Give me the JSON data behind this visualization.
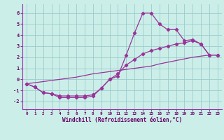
{
  "xlabel": "Windchill (Refroidissement éolien,°C)",
  "bg_color": "#cceee8",
  "grid_color": "#99cccc",
  "line_color": "#993399",
  "spine_color": "#9933aa",
  "xlim": [
    -0.5,
    23.5
  ],
  "ylim": [
    -2.7,
    6.8
  ],
  "yticks": [
    -2,
    -1,
    0,
    1,
    2,
    3,
    4,
    5,
    6
  ],
  "xticks": [
    0,
    1,
    2,
    3,
    4,
    5,
    6,
    7,
    8,
    9,
    10,
    11,
    12,
    13,
    14,
    15,
    16,
    17,
    18,
    19,
    20,
    21,
    22,
    23
  ],
  "line1_x": [
    0,
    1,
    2,
    3,
    4,
    5,
    6,
    7,
    8,
    9,
    10,
    11,
    12,
    13,
    14,
    15,
    16,
    17,
    18,
    19,
    20,
    21,
    22,
    23
  ],
  "line1_y": [
    -0.4,
    -0.7,
    -1.2,
    -1.3,
    -1.65,
    -1.65,
    -1.65,
    -1.65,
    -1.5,
    -0.8,
    0.0,
    0.3,
    2.2,
    4.2,
    6.0,
    6.0,
    5.0,
    4.5,
    4.5,
    3.5,
    3.6,
    3.2,
    2.2,
    2.2
  ],
  "line2_x": [
    0,
    1,
    2,
    3,
    4,
    5,
    6,
    7,
    8,
    9,
    10,
    11,
    12,
    13,
    14,
    15,
    16,
    17,
    18,
    19,
    20,
    21,
    22,
    23
  ],
  "line2_y": [
    -0.4,
    -0.7,
    -1.2,
    -1.3,
    -1.5,
    -1.5,
    -1.5,
    -1.5,
    -1.4,
    -0.8,
    0.0,
    0.5,
    1.3,
    1.8,
    2.3,
    2.6,
    2.8,
    3.0,
    3.2,
    3.3,
    3.5,
    3.2,
    2.2,
    2.2
  ],
  "line3_x": [
    0,
    1,
    2,
    3,
    4,
    5,
    6,
    7,
    8,
    9,
    10,
    11,
    12,
    13,
    14,
    15,
    16,
    17,
    18,
    19,
    20,
    21,
    22,
    23
  ],
  "line3_y": [
    -0.4,
    -0.3,
    -0.2,
    -0.1,
    0.0,
    0.1,
    0.2,
    0.35,
    0.5,
    0.6,
    0.7,
    0.8,
    0.9,
    1.0,
    1.1,
    1.2,
    1.4,
    1.55,
    1.7,
    1.85,
    2.0,
    2.1,
    2.2,
    2.2
  ]
}
